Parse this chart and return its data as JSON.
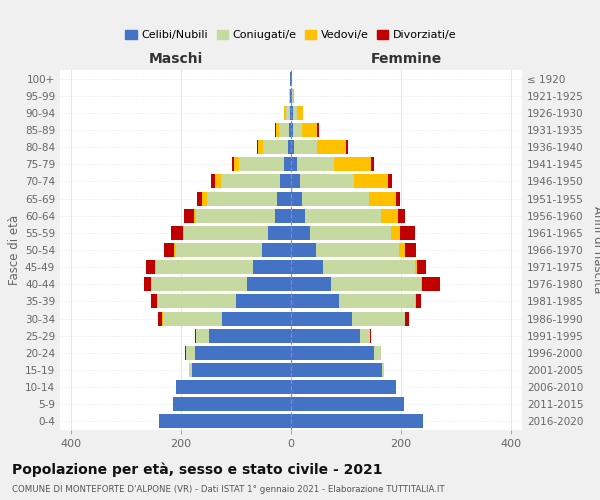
{
  "age_groups": [
    "0-4",
    "5-9",
    "10-14",
    "15-19",
    "20-24",
    "25-29",
    "30-34",
    "35-39",
    "40-44",
    "45-49",
    "50-54",
    "55-59",
    "60-64",
    "65-69",
    "70-74",
    "75-79",
    "80-84",
    "85-89",
    "90-94",
    "95-99",
    "100+"
  ],
  "birth_years": [
    "2016-2020",
    "2011-2015",
    "2006-2010",
    "2001-2005",
    "1996-2000",
    "1991-1995",
    "1986-1990",
    "1981-1985",
    "1976-1980",
    "1971-1975",
    "1966-1970",
    "1961-1965",
    "1956-1960",
    "1951-1955",
    "1946-1950",
    "1941-1945",
    "1936-1940",
    "1931-1935",
    "1926-1930",
    "1921-1925",
    "≤ 1920"
  ],
  "males_single": [
    240,
    215,
    210,
    180,
    175,
    150,
    125,
    100,
    80,
    70,
    52,
    42,
    30,
    25,
    20,
    12,
    6,
    4,
    2,
    1,
    1
  ],
  "males_married": [
    0,
    0,
    0,
    5,
    16,
    22,
    108,
    142,
    172,
    175,
    158,
    152,
    142,
    128,
    108,
    82,
    45,
    18,
    7,
    2,
    0
  ],
  "males_widowed": [
    0,
    0,
    0,
    0,
    0,
    1,
    1,
    2,
    2,
    2,
    2,
    3,
    4,
    8,
    10,
    10,
    9,
    6,
    3,
    1,
    0
  ],
  "males_divorced": [
    0,
    0,
    0,
    0,
    1,
    2,
    7,
    10,
    13,
    16,
    18,
    22,
    18,
    10,
    7,
    4,
    2,
    1,
    0,
    0,
    0
  ],
  "females_single": [
    240,
    205,
    190,
    165,
    150,
    125,
    110,
    88,
    72,
    58,
    45,
    35,
    26,
    20,
    16,
    10,
    6,
    4,
    3,
    1,
    1
  ],
  "females_married": [
    0,
    0,
    0,
    4,
    13,
    18,
    97,
    137,
    165,
    167,
    152,
    147,
    137,
    122,
    98,
    68,
    42,
    16,
    7,
    2,
    0
  ],
  "females_widowed": [
    0,
    0,
    0,
    0,
    0,
    1,
    1,
    2,
    2,
    4,
    10,
    16,
    32,
    48,
    62,
    68,
    52,
    28,
    11,
    3,
    0
  ],
  "females_divorced": [
    0,
    0,
    0,
    0,
    1,
    2,
    6,
    10,
    32,
    16,
    20,
    28,
    13,
    9,
    7,
    4,
    3,
    2,
    1,
    0,
    0
  ],
  "colors": {
    "single": "#4472c4",
    "married": "#c5d9a0",
    "widowed": "#ffc000",
    "divorced": "#c00000"
  },
  "legend_labels": [
    "Celibi/Nubili",
    "Coniugati/e",
    "Vedovi/e",
    "Divorziati/e"
  ],
  "xlim": 420,
  "title": "Popolazione per età, sesso e stato civile - 2021",
  "subtitle": "COMUNE DI MONTEFORTE D'ALPONE (VR) - Dati ISTAT 1° gennaio 2021 - Elaborazione TUTTITALIA.IT",
  "ylabel_left": "Fasce di età",
  "ylabel_right": "Anni di nascita",
  "xlabel_left": "Maschi",
  "xlabel_right": "Femmine",
  "bg_color": "#f0f0f0",
  "plot_bg_color": "#ffffff"
}
